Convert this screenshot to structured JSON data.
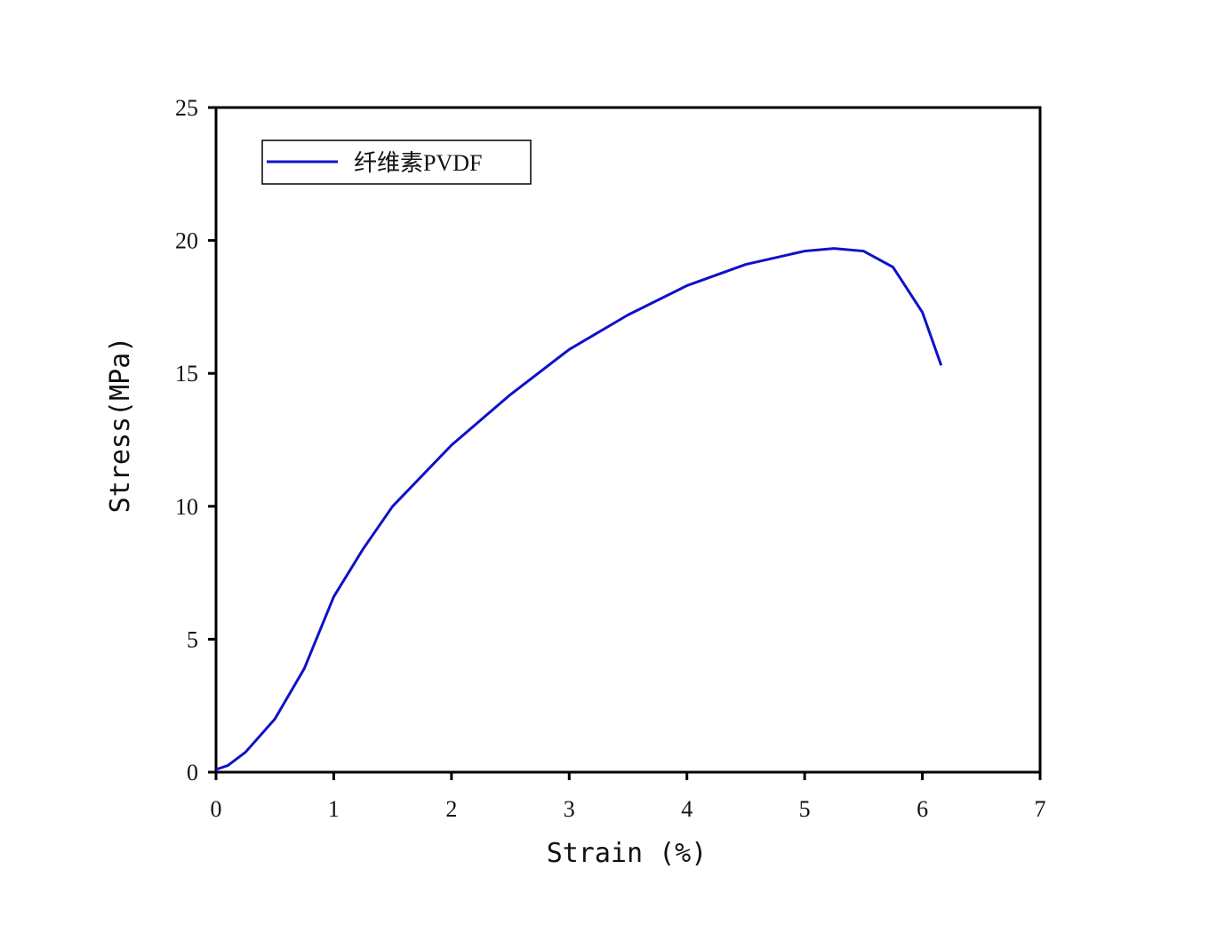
{
  "chart_data": {
    "type": "line",
    "xlabel": "Strain (%)",
    "ylabel": "Stress(MPa)",
    "xlim": [
      0,
      7
    ],
    "xticks": [
      0,
      1,
      2,
      3,
      4,
      5,
      6,
      7
    ],
    "ylim": [
      0,
      25
    ],
    "yticks": [
      0,
      5,
      10,
      15,
      20,
      25
    ],
    "legend": "upper left",
    "x": [
      0,
      0.1,
      0.25,
      0.5,
      0.75,
      1.0,
      1.25,
      1.5,
      2.0,
      2.5,
      3.0,
      3.5,
      4.0,
      4.5,
      5.0,
      5.25,
      5.5,
      5.75,
      6.0,
      6.16
    ],
    "series": [
      {
        "name": "纤维素PVDF",
        "color": "#1010c8",
        "values": [
          0.1,
          0.25,
          0.75,
          2.0,
          3.9,
          6.6,
          8.4,
          10.0,
          12.3,
          14.2,
          15.9,
          17.2,
          18.3,
          19.1,
          19.6,
          19.7,
          19.6,
          19.0,
          17.3,
          15.3
        ]
      }
    ]
  }
}
